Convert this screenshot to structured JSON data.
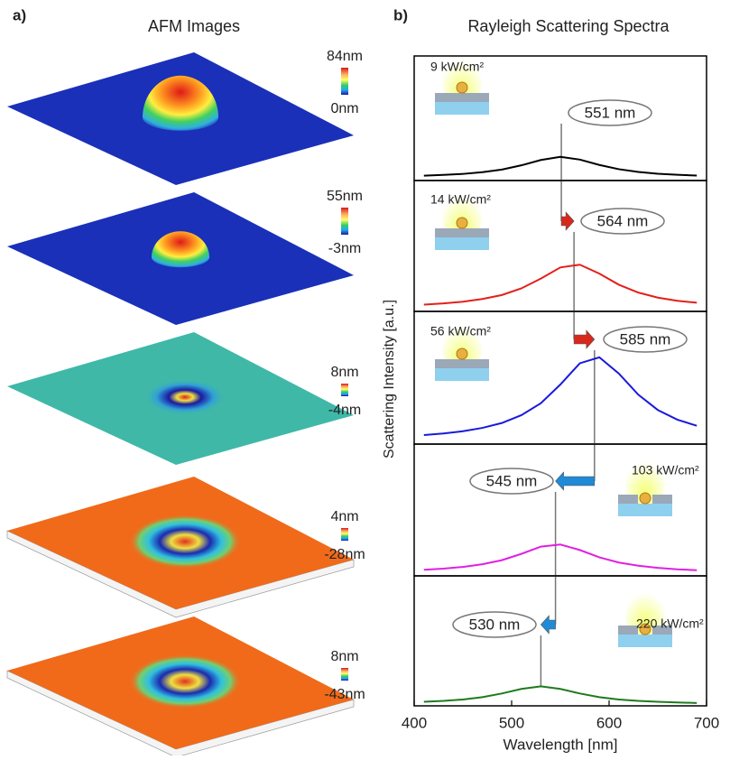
{
  "labels": {
    "a": "a)",
    "b": "b)"
  },
  "afm": {
    "title": "AFM Images",
    "scales": [
      {
        "top": "84nm",
        "bottom": "0nm"
      },
      {
        "top": "55nm",
        "bottom": "-3nm"
      },
      {
        "top": "8nm",
        "bottom": "-4nm"
      },
      {
        "top": "4nm",
        "bottom": "-28nm"
      },
      {
        "top": "8nm",
        "bottom": "-43nm"
      }
    ]
  },
  "chart_data": [
    {
      "type": "line",
      "title": "Rayleigh Scattering Spectra",
      "y_label": "Scattering Intensity [a.u.]",
      "power": "9 kW/cm²",
      "peak": 551,
      "peak_label": "551 nm",
      "xlim": [
        400,
        700
      ],
      "ylim": [
        0,
        1
      ],
      "x": [
        410,
        430,
        450,
        470,
        490,
        510,
        530,
        550,
        570,
        590,
        610,
        630,
        650,
        670,
        690
      ],
      "series": [
        {
          "color": "#000000",
          "values": [
            0.039,
            0.045,
            0.053,
            0.067,
            0.088,
            0.122,
            0.165,
            0.19,
            0.168,
            0.125,
            0.091,
            0.069,
            0.054,
            0.046,
            0.04
          ]
        }
      ]
    },
    {
      "type": "line",
      "power": "14 kW/cm²",
      "peak": 564,
      "peak_label": "564 nm",
      "xlim": [
        400,
        700
      ],
      "ylim": [
        0,
        1
      ],
      "x": [
        410,
        430,
        450,
        470,
        490,
        510,
        530,
        550,
        570,
        590,
        610,
        630,
        650,
        670,
        690
      ],
      "series": [
        {
          "color": "#e3201b",
          "values": [
            0.052,
            0.061,
            0.074,
            0.095,
            0.125,
            0.176,
            0.251,
            0.336,
            0.357,
            0.289,
            0.204,
            0.144,
            0.105,
            0.081,
            0.066
          ]
        }
      ]
    },
    {
      "type": "line",
      "power": "56 kW/cm²",
      "peak": 585,
      "peak_label": "585 nm",
      "xlim": [
        400,
        700
      ],
      "ylim": [
        0,
        1
      ],
      "x": [
        410,
        430,
        450,
        470,
        490,
        510,
        530,
        550,
        570,
        590,
        610,
        630,
        650,
        670,
        690
      ],
      "series": [
        {
          "color": "#1a1adb",
          "values": [
            0.068,
            0.08,
            0.097,
            0.122,
            0.159,
            0.218,
            0.308,
            0.449,
            0.609,
            0.654,
            0.532,
            0.372,
            0.257,
            0.184,
            0.138
          ]
        }
      ]
    },
    {
      "type": "line",
      "power": "103 kW/cm²",
      "peak": 545,
      "peak_label": "545 nm",
      "xlim": [
        400,
        700
      ],
      "ylim": [
        0,
        1
      ],
      "x": [
        410,
        430,
        450,
        470,
        490,
        510,
        530,
        550,
        570,
        590,
        610,
        630,
        650,
        670,
        690
      ],
      "series": [
        {
          "color": "#e020e0",
          "values": [
            0.046,
            0.055,
            0.068,
            0.088,
            0.119,
            0.167,
            0.222,
            0.238,
            0.196,
            0.141,
            0.101,
            0.077,
            0.061,
            0.05,
            0.043
          ]
        }
      ]
    },
    {
      "type": "line",
      "power": "220 kW/cm²",
      "peak": 530,
      "peak_label": "530 nm",
      "x_label": "Wavelength [nm]",
      "xlim": [
        400,
        700
      ],
      "xticks": [
        400,
        500,
        600,
        700
      ],
      "ylim": [
        0,
        1
      ],
      "x": [
        410,
        430,
        450,
        470,
        490,
        510,
        530,
        550,
        570,
        590,
        610,
        630,
        650,
        670,
        690
      ],
      "series": [
        {
          "color": "#1f7a1f",
          "values": [
            0.031,
            0.038,
            0.049,
            0.067,
            0.095,
            0.13,
            0.15,
            0.13,
            0.095,
            0.067,
            0.049,
            0.038,
            0.031,
            0.026,
            0.022
          ]
        }
      ]
    }
  ]
}
